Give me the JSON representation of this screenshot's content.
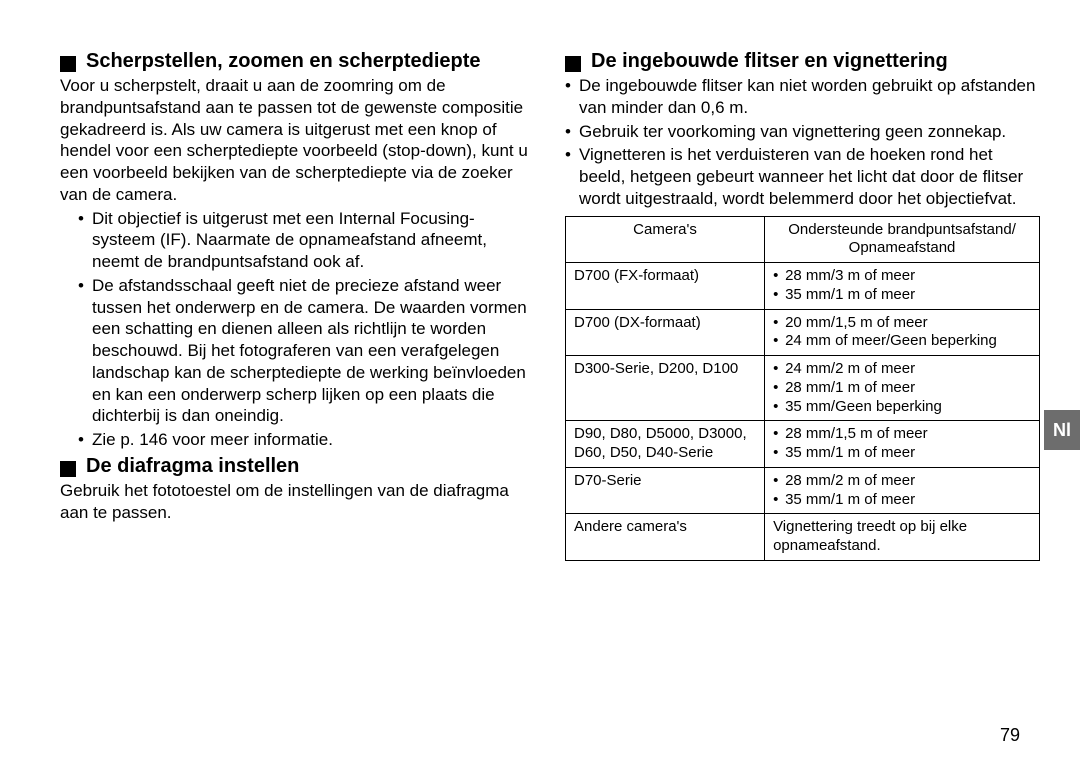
{
  "left": {
    "section1": {
      "title": "Scherpstellen, zoomen en scherptediepte",
      "body": "Voor u scherpstelt, draait u aan de zoomring om de brandpuntsafstand aan te passen tot de gewenste compositie gekadreerd is. Als uw camera is uitgerust met een knop of hendel voor een scherptediepte voorbeeld (stop-down), kunt u een voorbeeld bekijken van de scherptediepte via de zoeker van de camera.",
      "bullets": [
        "Dit objectief is uitgerust met een Internal Focusing-systeem (IF). Naarmate de opnameafstand afneemt, neemt de brandpuntsafstand ook af.",
        "De afstandsschaal geeft niet de precieze afstand weer tussen het onderwerp en de camera. De waarden vormen een schatting en dienen alleen als richtlijn te worden beschouwd. Bij het fotograferen van een verafgelegen landschap kan de scherptediepte de werking beïnvloeden en kan een onderwerp scherp lijken op een plaats die dichterbij is dan oneindig.",
        "Zie p. 146 voor meer informatie."
      ]
    },
    "section2": {
      "title": "De diafragma instellen",
      "body": "Gebruik het fototoestel om de instellingen van de diafragma aan te passen."
    }
  },
  "right": {
    "section1": {
      "title": "De ingebouwde flitser en vignettering",
      "bullets": [
        "De ingebouwde flitser kan niet worden gebruikt op afstanden van minder dan 0,6 m.",
        "Gebruik ter voorkoming van vignettering geen zonnekap.",
        "Vignetteren is het verduisteren van de hoeken rond het beeld, hetgeen gebeurt wanneer het licht dat door de flitser wordt uitgestraald, wordt belemmerd door het objectiefvat."
      ]
    },
    "table": {
      "header_cam": "Camera's",
      "header_dist": "Ondersteunde brandpuntsafstand/\nOpnameafstand",
      "rows": [
        {
          "cam": "D700 (FX-formaat)",
          "dist": [
            "28 mm/3 m of meer",
            "35 mm/1 m of meer"
          ]
        },
        {
          "cam": "D700 (DX-formaat)",
          "dist": [
            "20 mm/1,5 m of meer",
            "24 mm of meer/Geen beperking"
          ]
        },
        {
          "cam": "D300-Serie, D200, D100",
          "dist": [
            "24 mm/2 m of meer",
            "28 mm/1 m of meer",
            "35 mm/Geen beperking"
          ]
        },
        {
          "cam": "D90, D80, D5000, D3000, D60, D50, D40-Serie",
          "dist": [
            "28 mm/1,5 m of meer",
            "35 mm/1 m of meer"
          ]
        },
        {
          "cam": "D70-Serie",
          "dist": [
            "28 mm/2 m of meer",
            "35 mm/1 m of meer"
          ]
        },
        {
          "cam": "Andere camera's",
          "dist_plain": "Vignettering treedt op bij elke opnameafstand."
        }
      ]
    }
  },
  "tab_label": "Nl",
  "page_number": "79"
}
